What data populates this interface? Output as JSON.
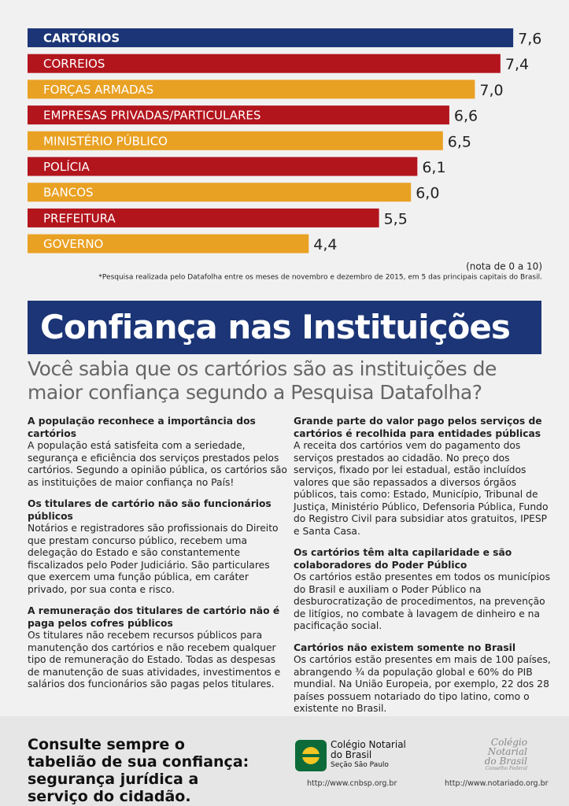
{
  "chart_data": {
    "type": "bar",
    "categories": [
      "CARTÓRIOS",
      "CORREIOS",
      "FORÇAS ARMADAS",
      "EMPRESAS PRIVADAS/PARTICULARES",
      "MINISTÉRIO PÚBLICO",
      "POLÍCIA",
      "BANCOS",
      "PREFEITURA",
      "GOVERNO"
    ],
    "values": [
      7.6,
      7.4,
      7.0,
      6.6,
      6.5,
      6.1,
      6.0,
      5.5,
      4.4
    ],
    "value_labels": [
      "7,6",
      "7,4",
      "7,0",
      "6,6",
      "6,5",
      "6,1",
      "6,0",
      "5,5",
      "4,4"
    ],
    "colors": [
      "#1b3576",
      "#b3151d",
      "#e9a123",
      "#b3151d",
      "#e9a123",
      "#b3151d",
      "#e9a123",
      "#b3151d",
      "#e9a123"
    ],
    "scale_note": "(nota de 0 a 10)",
    "footnote": "*Pesquisa realizada pelo Datafolha entre os meses de novembro e dezembro de 2015, em 5 das principais capitais do Brasil."
  },
  "title": "Confiança nas Instituições",
  "subtitle": "Você sabia que os cartórios são as instituições de maior confiança segundo a Pesquisa Datafolha?",
  "columns": [
    [
      {
        "heading": "A população reconhece a importância dos cartórios",
        "text": "A população está satisfeita com a seriedade, segurança e eficiência dos serviços prestados pelos cartórios. Segundo a opinião pública, os cartórios são as instituições de maior confiança no País!"
      },
      {
        "heading": "Os titulares de cartório não são funcionários públicos",
        "text": "Notários e registradores são profissionais do Direito que prestam concurso público, recebem uma delegação do Estado e são constantemente fiscalizados pelo Poder Judiciário. São particulares que exercem uma função pública, em caráter privado, por sua conta e risco."
      },
      {
        "heading": "A remuneração dos titulares de cartório não é paga pelos cofres públicos",
        "text": "Os titulares não recebem recursos públicos para manutenção dos cartórios e não recebem qualquer tipo de remuneração do Estado. Todas as despesas de manutenção de suas atividades, investimentos e salários dos funcionários são pagas pelos titulares."
      }
    ],
    [
      {
        "heading": "Grande parte do valor pago pelos serviços de cartórios é recolhida para entidades públicas",
        "text": "A receita dos cartórios vem do pagamento dos serviços prestados ao cidadão. No preço dos serviços, fixado por lei estadual, estão incluídos valores que são repassados a diversos órgãos públicos, tais como: Estado, Município, Tribunal de Justiça, Ministério Público, Defensoria Pública, Fundo do Registro Civil para subsidiar atos gratuitos, IPESP e Santa Casa."
      },
      {
        "heading": "Os cartórios têm alta capilaridade e são colaboradores do Poder Público",
        "text": "Os cartórios estão presentes em todos os municípios do Brasil e auxiliam o Poder Público na desburocratização de procedimentos, na prevenção de litígios, no combate à lavagem de dinheiro e na pacificação social."
      },
      {
        "heading": "Cartórios não existem somente no Brasil",
        "text": "Os cartórios estão presentes em mais de 100 países, abrangendo ¾ da população global e 60% do PIB mundial. Na União Europeia, por exemplo, 22 dos 28 países possuem notariado do tipo latino, como o existente no Brasil."
      }
    ]
  ],
  "footer": {
    "slogan": "Consulte sempre o tabelião de sua confiança: segurança jurídica a serviço do cidadão.",
    "logo1": {
      "name1": "Colégio Notarial",
      "name2": "do Brasil",
      "section": "Seção São Paulo",
      "url": "http://www.cnbsp.org.br"
    },
    "logo2": {
      "name1": "Colégio",
      "name2": "Notarial",
      "name3": "do Brasil",
      "section": "Conselho Federal",
      "url": "http://www.notariado.org.br"
    }
  }
}
